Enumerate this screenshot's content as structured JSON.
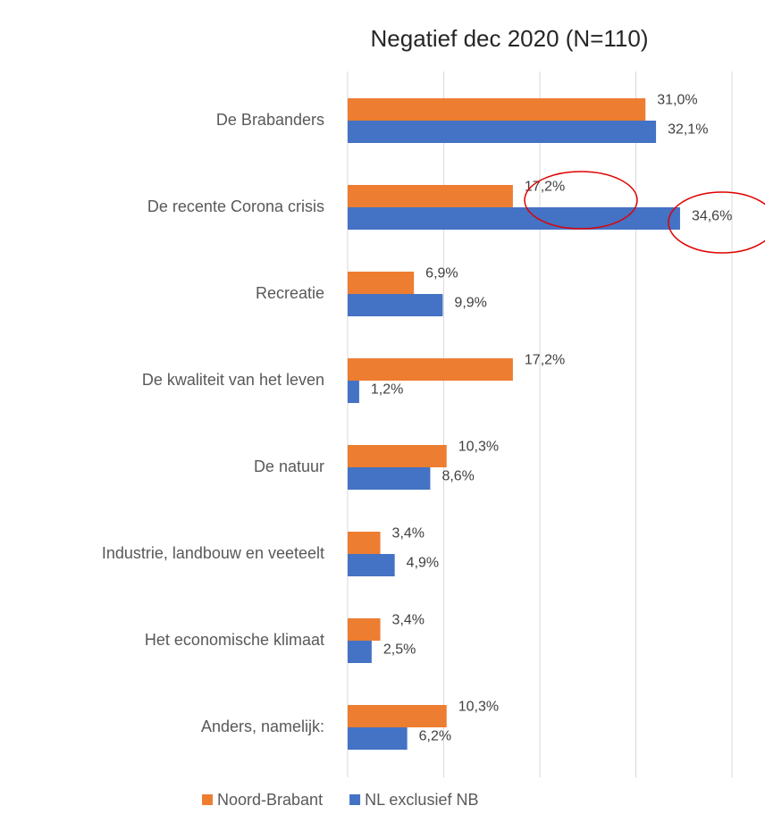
{
  "chart_data": {
    "type": "barh",
    "title": "Negatief dec 2020 (N=110)",
    "categories": [
      "De Brabanders",
      "De recente Corona crisis",
      "Recreatie",
      "De kwaliteit van het leven",
      "De natuur",
      "Industrie, landbouw en veeteelt",
      "Het economische klimaat",
      "Anders, namelijk:"
    ],
    "series": [
      {
        "name": "Noord-Brabant",
        "color": "#ED7D31",
        "values": [
          31.0,
          17.2,
          6.9,
          17.2,
          10.3,
          3.4,
          3.4,
          10.3
        ],
        "value_labels": [
          "31,0%",
          "17,2%",
          "6,9%",
          "17,2%",
          "10,3%",
          "3,4%",
          "3,4%",
          "10,3%"
        ]
      },
      {
        "name": "NL exclusief NB",
        "color": "#4472C4",
        "values": [
          32.1,
          34.6,
          9.9,
          1.2,
          8.6,
          4.9,
          2.5,
          6.2
        ],
        "value_labels": [
          "32,1%",
          "34,6%",
          "9,9%",
          "1,2%",
          "8,6%",
          "4,9%",
          "2,5%",
          "6,2%"
        ]
      }
    ],
    "xlim": [
      0,
      40
    ],
    "xticks": [
      0,
      10,
      20,
      30,
      40
    ],
    "grid": true,
    "legend": "bottom"
  }
}
